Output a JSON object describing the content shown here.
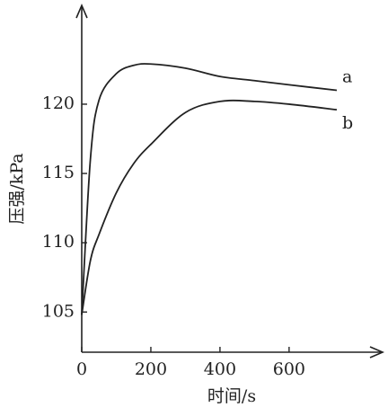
{
  "chart_data": {
    "type": "line",
    "x_label": "时间/s",
    "y_label": "压强/kPa",
    "x": [
      0,
      25,
      50,
      100,
      150,
      200,
      300,
      400,
      500,
      600,
      738
    ],
    "series": [
      {
        "name": "a",
        "color": "#222222",
        "values": [
          104.8,
          116,
          120.3,
          122.2,
          122.8,
          122.9,
          122.6,
          122.0,
          121.7,
          121.4,
          121.0
        ]
      },
      {
        "name": "b",
        "color": "#222222",
        "values": [
          104.8,
          108.7,
          110.6,
          113.6,
          115.7,
          117.1,
          119.4,
          120.2,
          120.2,
          120.0,
          119.6
        ]
      }
    ],
    "xlim": [
      0,
      868
    ],
    "ylim": [
      102.1,
      127
    ],
    "xticks": [
      0,
      200,
      400,
      600
    ],
    "yticks": [
      105,
      110,
      115,
      120
    ]
  }
}
